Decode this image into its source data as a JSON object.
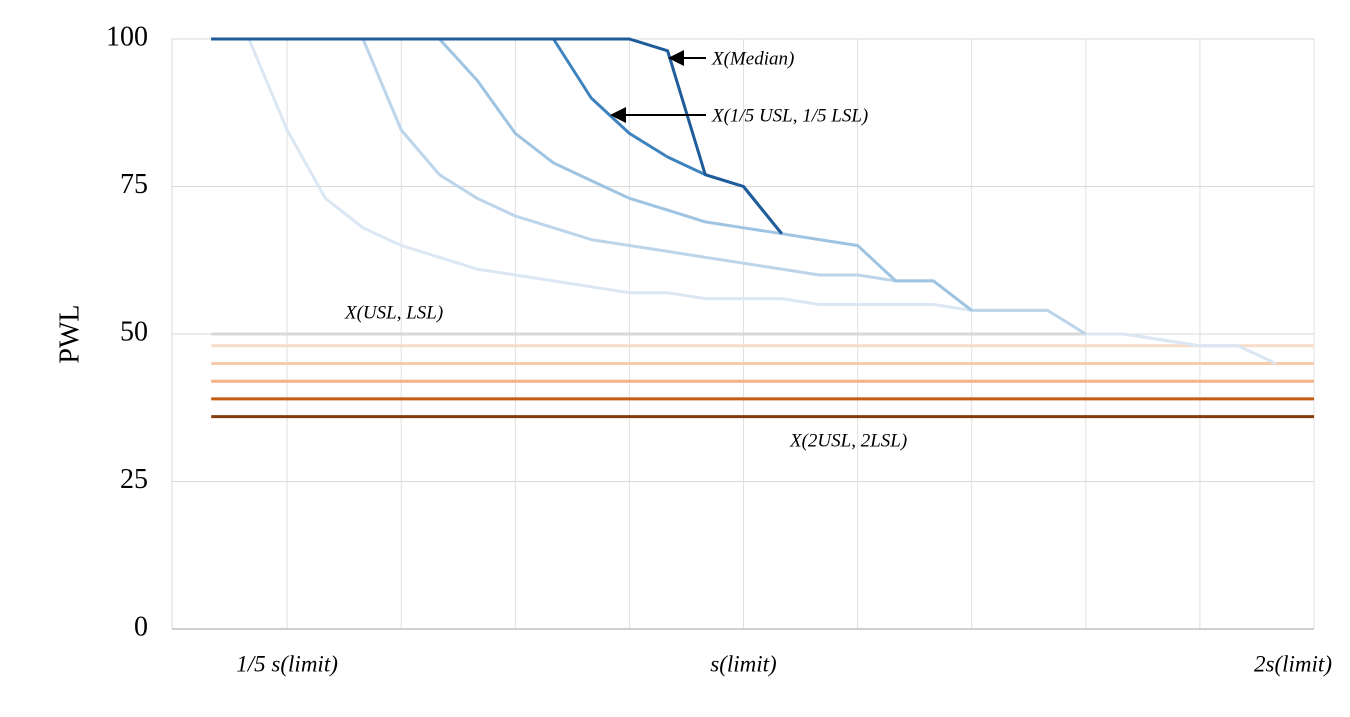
{
  "chart_data": {
    "type": "line",
    "y_label": "PWL",
    "xlim": [
      0,
      2
    ],
    "ylim": [
      0,
      100
    ],
    "yticks": [
      0,
      25,
      50,
      75,
      100
    ],
    "xticks": [
      {
        "value": 0.2,
        "label": "1/5 s(limit)"
      },
      {
        "value": 1,
        "label": "s(limit)"
      },
      {
        "value": 2,
        "label": "2s(limit)"
      }
    ],
    "xgrid": [
      0.2,
      0.4,
      0.6,
      0.8,
      1,
      1.2,
      1.4,
      1.6,
      1.8,
      2
    ],
    "grid": true,
    "annotations": [
      {
        "text": "X(Median)"
      },
      {
        "text": "X(1/5 USL, 1/5 LSL)"
      },
      {
        "text": "X(USL, LSL)"
      },
      {
        "text": "X(2USL, 2LSL)"
      }
    ],
    "series": [
      {
        "color": "#f8dcc8",
        "x": [
          0.067,
          2
        ],
        "values": [
          48,
          48
        ]
      },
      {
        "color": "#f8cbad",
        "x": [
          0.067,
          2
        ],
        "values": [
          45,
          45
        ]
      },
      {
        "color": "#f4b183",
        "x": [
          0.067,
          2
        ],
        "values": [
          42,
          42
        ]
      },
      {
        "color": "#c55a11",
        "x": [
          0.067,
          2
        ],
        "values": [
          39,
          39
        ]
      },
      {
        "color": "#843c0c",
        "x": [
          0.067,
          2
        ],
        "values": [
          36,
          36
        ]
      },
      {
        "color": "#d9d9d9",
        "x": [
          0.067,
          1.667,
          1.8,
          1.867,
          1.933
        ],
        "values": [
          50,
          50,
          48,
          48,
          45
        ]
      },
      {
        "color": "#dbe7f3",
        "x": [
          0.067,
          0.133,
          0.2,
          0.267,
          0.333,
          0.4,
          0.467,
          0.533,
          0.6,
          0.667,
          0.733,
          0.8,
          0.867,
          0.933,
          1,
          1.067,
          1.133,
          1.2,
          1.267,
          1.333,
          1.4,
          1.467,
          1.533,
          1.6,
          1.667,
          1.733,
          1.8,
          1.867,
          1.933
        ],
        "values": [
          100,
          100,
          84.6,
          73,
          68,
          65,
          63,
          61,
          60,
          59,
          58,
          57,
          57,
          56,
          56,
          56,
          55,
          55,
          55,
          55,
          54,
          54,
          54,
          50,
          50,
          49,
          48,
          48,
          45
        ]
      },
      {
        "color": "#bcd5ea",
        "x": [
          0.067,
          0.333,
          0.4,
          0.467,
          0.533,
          0.6,
          0.667,
          0.733,
          0.8,
          0.867,
          0.933,
          1,
          1.067,
          1.133,
          1.2,
          1.267,
          1.333,
          1.4,
          1.467,
          1.533,
          1.6
        ],
        "values": [
          100,
          100,
          84.6,
          77,
          73,
          70,
          68,
          66,
          65,
          64,
          63,
          62,
          61,
          60,
          60,
          59,
          59,
          54,
          54,
          54,
          50
        ]
      },
      {
        "color": "#9fc4e2",
        "x": [
          0.067,
          0.467,
          0.533,
          0.6,
          0.667,
          0.733,
          0.8,
          0.867,
          0.933,
          1,
          1.067,
          1.133,
          1.2,
          1.267,
          1.333,
          1.4
        ],
        "values": [
          100,
          100,
          93,
          84,
          79,
          76,
          73,
          71,
          69,
          68,
          67,
          66,
          65,
          59,
          59,
          54
        ]
      },
      {
        "color": "#3f83be",
        "x": [
          0.067,
          0.667,
          0.733,
          0.8,
          0.867,
          0.933,
          1,
          1.067
        ],
        "values": [
          100,
          100,
          90,
          84,
          80,
          77,
          75,
          67
        ]
      },
      {
        "color": "#1f5c99",
        "x": [
          0.067,
          0.8,
          0.867,
          0.933,
          1,
          1.067
        ],
        "values": [
          100,
          100,
          98,
          77,
          75,
          67
        ]
      }
    ]
  }
}
